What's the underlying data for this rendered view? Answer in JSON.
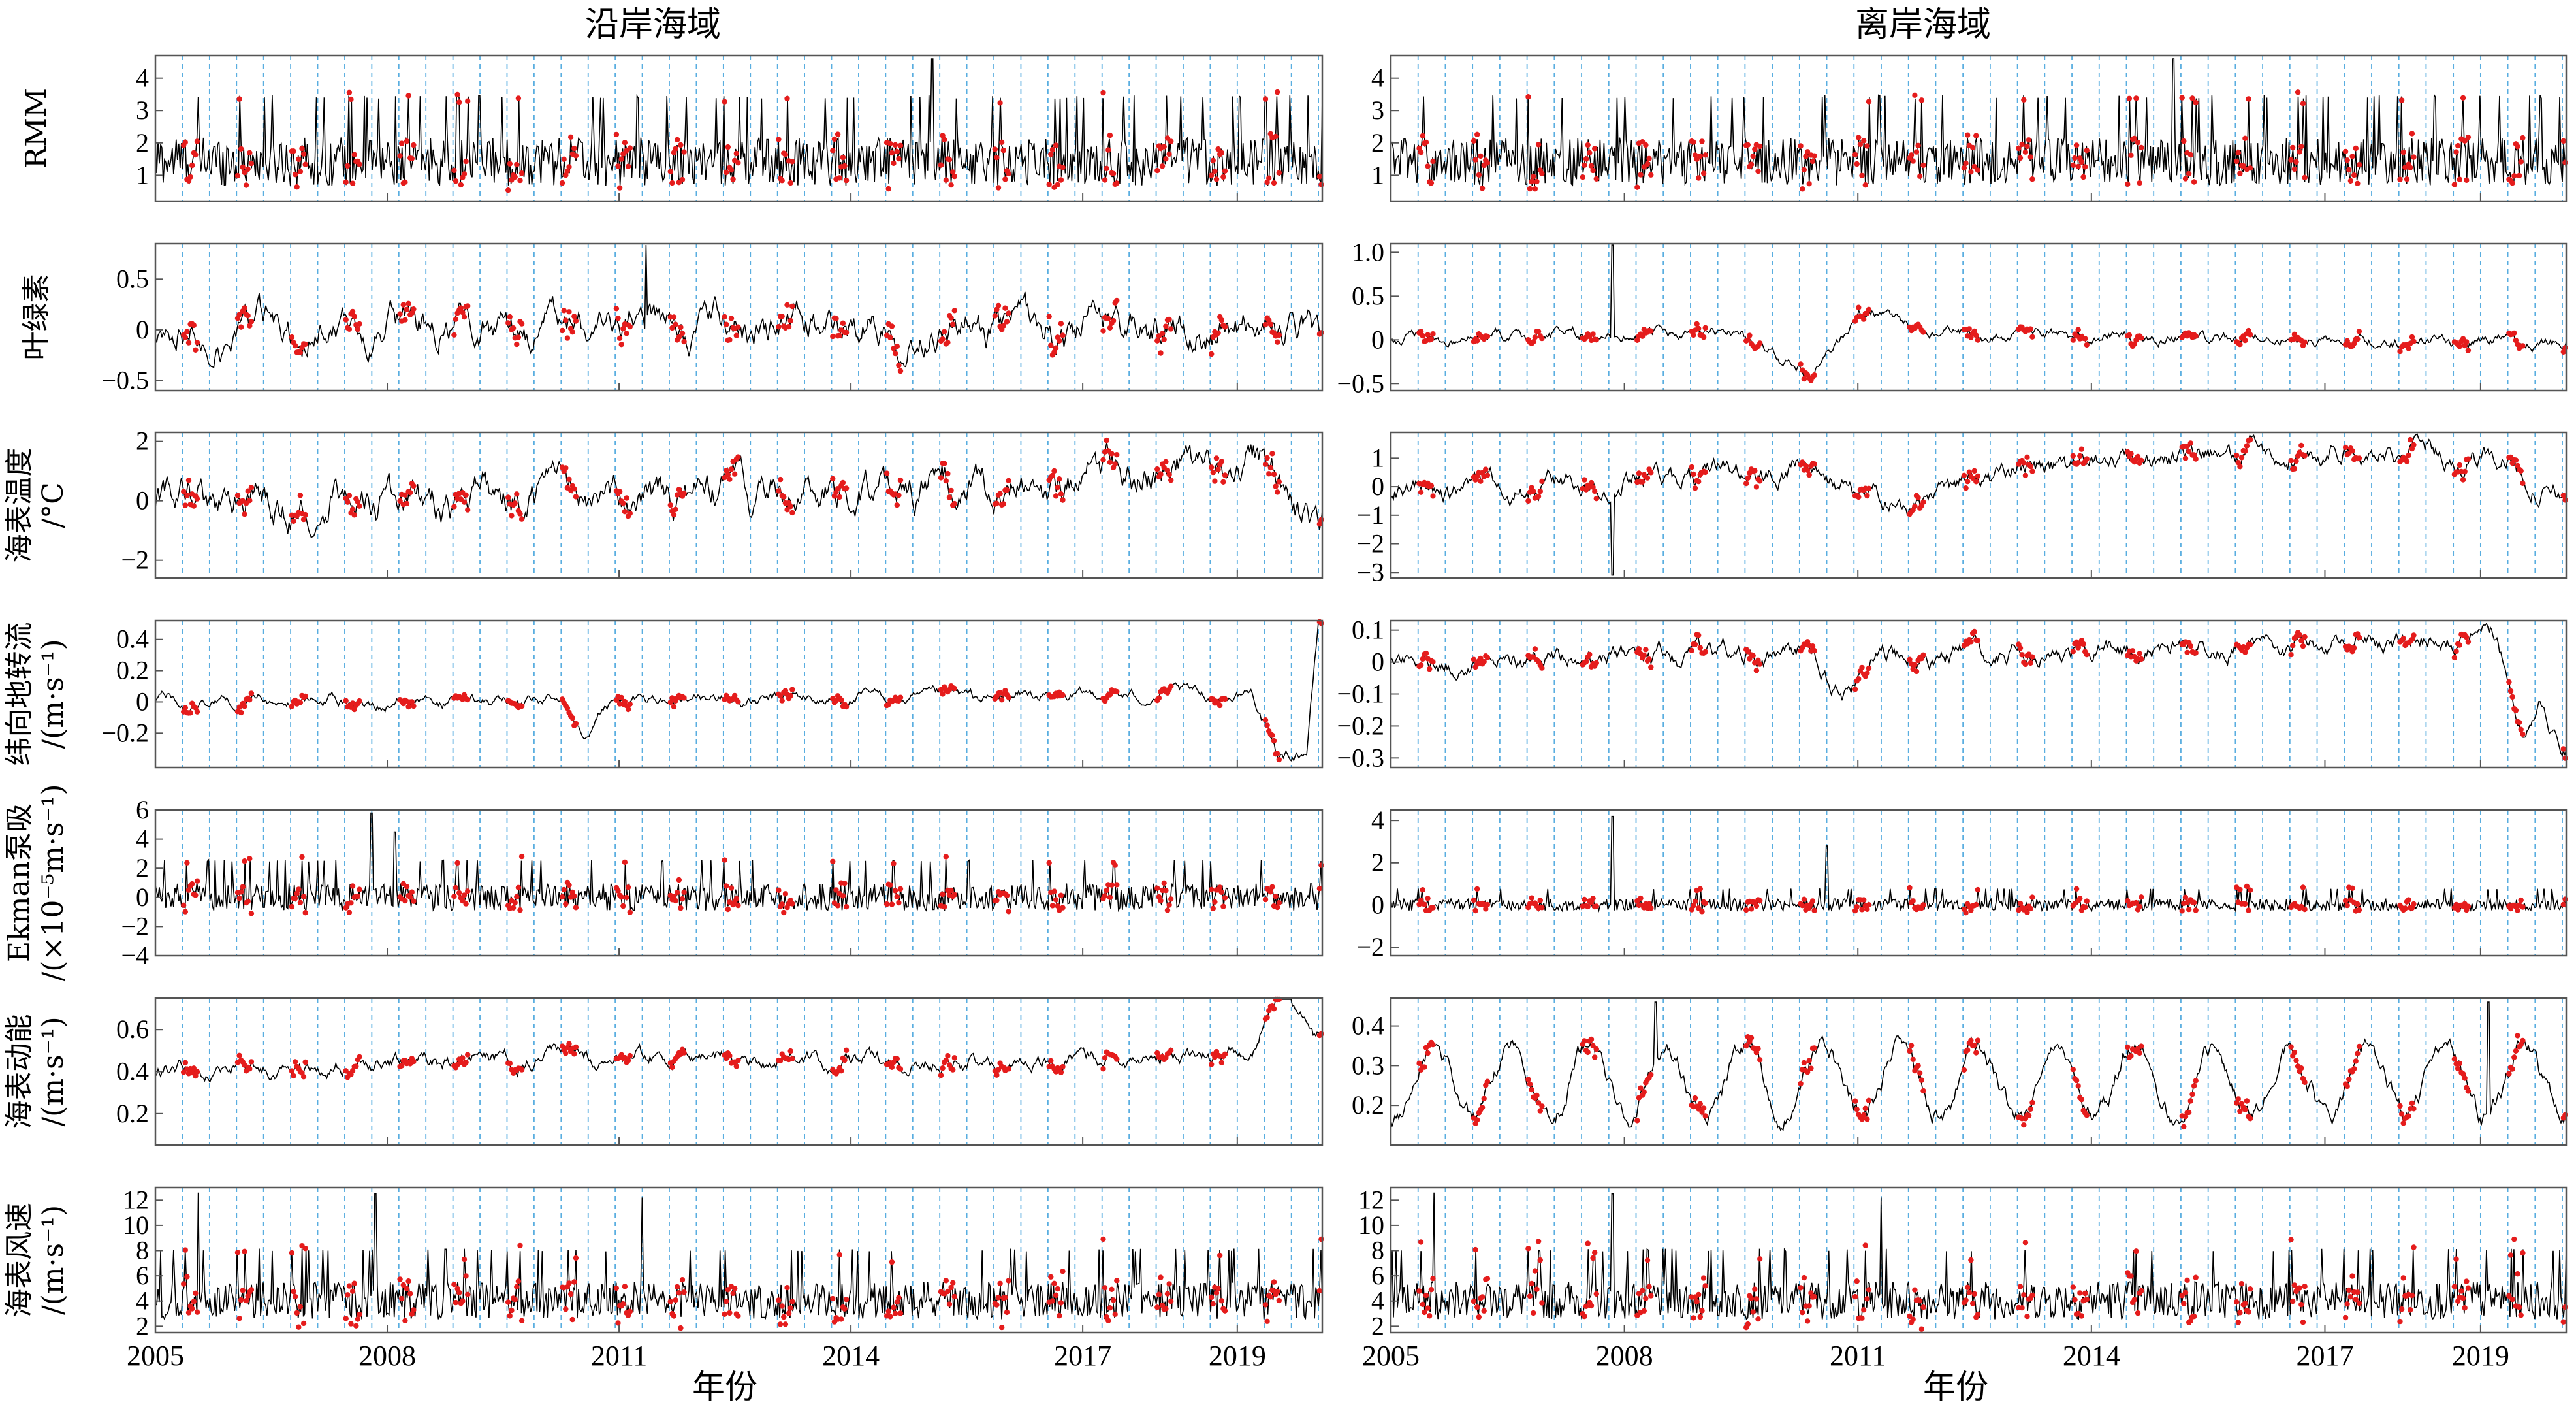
{
  "columns": [
    {
      "title": "沿岸海域"
    },
    {
      "title": "离岸海域"
    }
  ],
  "x_axis": {
    "label": "年份",
    "range": [
      2005,
      2020.1
    ],
    "ticks": [
      2005,
      2008,
      2011,
      2014,
      2017,
      2019
    ],
    "tick_labels": [
      "2005",
      "2008",
      "2011",
      "2014",
      "2017",
      "2019"
    ]
  },
  "event_lines": [
    2005.35,
    2005.7,
    2006.05,
    2006.4,
    2006.75,
    2007.1,
    2007.45,
    2007.8,
    2008.15,
    2008.5,
    2008.85,
    2009.2,
    2009.55,
    2009.9,
    2010.25,
    2010.6,
    2010.95,
    2011.3,
    2011.65,
    2012.0,
    2012.35,
    2012.7,
    2013.05,
    2013.4,
    2013.75,
    2014.1,
    2014.45,
    2014.8,
    2015.15,
    2015.5,
    2015.85,
    2016.2,
    2016.55,
    2016.9,
    2017.25,
    2017.6,
    2017.95,
    2018.3,
    2018.65,
    2019.0,
    2019.35,
    2019.7,
    2020.05
  ],
  "line_color": "#000000",
  "event_color": "#e51c1c",
  "grid_color": "#5aaee0",
  "chart_data": [
    {
      "type": "line",
      "row": 0,
      "col": 0,
      "ylabel": [
        "RMM"
      ],
      "ylim": [
        0.2,
        4.7
      ],
      "yticks": [
        1,
        2,
        3,
        4
      ],
      "tick_labels": [
        "1",
        "2",
        "3",
        "4"
      ],
      "series": [
        {
          "kind": "noise",
          "mean": 1.4,
          "amp": 0.8,
          "trend": [],
          "spikes": [
            [
              2015.05,
              4.6
            ]
          ],
          "event_amp": 0.35
        }
      ]
    },
    {
      "type": "line",
      "row": 1,
      "col": 0,
      "ylabel": [
        "叶绿素"
      ],
      "ylim": [
        -0.6,
        0.85
      ],
      "yticks": [
        -0.5,
        0,
        0.5
      ],
      "tick_labels": [
        "−0.5",
        "0",
        "0.5"
      ],
      "series": [
        {
          "kind": "smooth",
          "mean": 0.02,
          "amp": 0.22,
          "trend": [],
          "spikes": [
            [
              2011.35,
              0.85
            ]
          ],
          "event_amp": 0.2
        }
      ]
    },
    {
      "type": "line",
      "row": 2,
      "col": 0,
      "ylabel": [
        "海表温度",
        "/°C"
      ],
      "ylim": [
        -2.6,
        2.3
      ],
      "yticks": [
        -2,
        0,
        2
      ],
      "tick_labels": [
        "−2",
        "0",
        "2"
      ],
      "series": [
        {
          "kind": "smooth",
          "mean": 0,
          "amp": 0.8,
          "trend": [
            [
              2005,
              -0.1
            ],
            [
              2012,
              0.1
            ],
            [
              2016,
              0.6
            ],
            [
              2019.3,
              1.2
            ],
            [
              2020,
              -0.6
            ]
          ],
          "spikes": [],
          "event_amp": 0.5
        }
      ]
    },
    {
      "type": "line",
      "row": 3,
      "col": 0,
      "ylabel": [
        "纬向地转流",
        "/(m·s⁻¹)"
      ],
      "ylim": [
        -0.42,
        0.52
      ],
      "yticks": [
        -0.2,
        0,
        0.2,
        0.4
      ],
      "tick_labels": [
        "−0.2",
        "0",
        "0.2",
        "0.4"
      ],
      "series": [
        {
          "kind": "smooth",
          "mean": 0,
          "amp": 0.05,
          "trend": [
            [
              2005,
              0
            ],
            [
              2010.3,
              0
            ],
            [
              2010.55,
              -0.18
            ],
            [
              2010.8,
              0
            ],
            [
              2019.2,
              0.05
            ],
            [
              2019.5,
              -0.35
            ],
            [
              2019.9,
              -0.3
            ],
            [
              2020.05,
              0.5
            ]
          ],
          "spikes": [],
          "event_amp": 0.05
        }
      ]
    },
    {
      "type": "line",
      "row": 4,
      "col": 0,
      "ylabel": [
        "Ekman泵吸",
        "/(×10⁻⁵m·s⁻¹)"
      ],
      "ylim": [
        -4,
        6
      ],
      "yticks": [
        -4,
        -2,
        0,
        2,
        4,
        6
      ],
      "tick_labels": [
        "−4",
        "−2",
        "0",
        "2",
        "4",
        "6"
      ],
      "series": [
        {
          "kind": "noise",
          "mean": 0,
          "amp": 1.0,
          "trend": [],
          "spikes": [
            [
              2007.8,
              5.8
            ],
            [
              2008.1,
              4.5
            ]
          ],
          "event_amp": 0.6
        }
      ]
    },
    {
      "type": "line",
      "row": 5,
      "col": 0,
      "ylabel": [
        "海表动能",
        "/(m·s⁻¹)"
      ],
      "ylim": [
        0.05,
        0.75
      ],
      "yticks": [
        0.2,
        0.4,
        0.6
      ],
      "tick_labels": [
        "0.2",
        "0.4",
        "0.6"
      ],
      "series": [
        {
          "kind": "smooth",
          "mean": 0.22,
          "amp": 0.05,
          "trend": [
            [
              2005,
              0.18
            ],
            [
              2009,
              0.24
            ],
            [
              2011,
              0.26
            ],
            [
              2015,
              0.22
            ],
            [
              2019.2,
              0.26
            ],
            [
              2019.6,
              0.62
            ],
            [
              2020,
              0.35
            ]
          ],
          "spikes": [],
          "event_amp": 0.04
        }
      ]
    },
    {
      "type": "line",
      "row": 6,
      "col": 0,
      "ylabel": [
        "海表风速",
        "/(m·s⁻¹)"
      ],
      "ylim": [
        1.5,
        13
      ],
      "yticks": [
        2,
        4,
        6,
        8,
        10,
        12
      ],
      "tick_labels": [
        "2",
        "4",
        "6",
        "8",
        "10",
        "12"
      ],
      "series": [
        {
          "kind": "noise",
          "mean": 4.0,
          "amp": 1.6,
          "trend": [],
          "spikes": [
            [
              2007.85,
              12.5
            ],
            [
              2005.55,
              12.6
            ],
            [
              2011.3,
              12.2
            ]
          ],
          "event_amp": 1.8
        }
      ]
    },
    {
      "type": "line",
      "row": 0,
      "col": 1,
      "ylabel": [],
      "ylim": [
        0.2,
        4.7
      ],
      "yticks": [
        1,
        2,
        3,
        4
      ],
      "tick_labels": [
        "1",
        "2",
        "3",
        "4"
      ],
      "series": [
        {
          "kind": "noise",
          "mean": 1.4,
          "amp": 0.8,
          "trend": [],
          "spikes": [
            [
              2015.05,
              4.6
            ]
          ],
          "event_amp": 0.35
        }
      ]
    },
    {
      "type": "line",
      "row": 1,
      "col": 1,
      "ylabel": [],
      "ylim": [
        -0.58,
        1.1
      ],
      "yticks": [
        -0.5,
        0,
        0.5,
        1.0
      ],
      "tick_labels": [
        "−0.5",
        "0",
        "0.5",
        "1.0"
      ],
      "series": [
        {
          "kind": "smooth",
          "mean": 0.02,
          "amp": 0.09,
          "trend": [
            [
              2005,
              0
            ],
            [
              2009.5,
              0.05
            ],
            [
              2010.4,
              -0.45
            ],
            [
              2011,
              0.3
            ],
            [
              2012,
              0.05
            ],
            [
              2020,
              -0.05
            ]
          ],
          "spikes": [
            [
              2007.85,
              1.1
            ]
          ],
          "event_amp": 0.08
        }
      ]
    },
    {
      "type": "line",
      "row": 2,
      "col": 1,
      "ylabel": [],
      "ylim": [
        -3.2,
        1.9
      ],
      "yticks": [
        -3,
        -2,
        -1,
        0,
        1
      ],
      "tick_labels": [
        "−3",
        "−2",
        "−1",
        "0",
        "1"
      ],
      "series": [
        {
          "kind": "smooth",
          "mean": 0,
          "amp": 0.5,
          "trend": [
            [
              2005,
              -0.3
            ],
            [
              2010.5,
              0.6
            ],
            [
              2011.5,
              -0.8
            ],
            [
              2013,
              0.6
            ],
            [
              2016,
              1.2
            ],
            [
              2019.3,
              1.0
            ],
            [
              2020,
              -0.4
            ]
          ],
          "spikes": [
            [
              2007.85,
              -3.1
            ]
          ],
          "event_amp": 0.4
        }
      ]
    },
    {
      "type": "line",
      "row": 3,
      "col": 1,
      "ylabel": [],
      "ylim": [
        -0.33,
        0.13
      ],
      "yticks": [
        -0.3,
        -0.2,
        -0.1,
        0,
        0.1
      ],
      "tick_labels": [
        "−0.3",
        "−0.2",
        "−0.1",
        "0",
        "0.1"
      ],
      "series": [
        {
          "kind": "smooth",
          "mean": 0.01,
          "amp": 0.04,
          "trend": [
            [
              2005,
              0
            ],
            [
              2010.4,
              0.02
            ],
            [
              2010.8,
              -0.1
            ],
            [
              2011.3,
              0
            ],
            [
              2019.2,
              0.07
            ],
            [
              2019.55,
              -0.25
            ],
            [
              2019.75,
              -0.1
            ],
            [
              2020.05,
              -0.28
            ]
          ],
          "spikes": [],
          "event_amp": 0.03
        }
      ]
    },
    {
      "type": "line",
      "row": 4,
      "col": 1,
      "ylabel": [],
      "ylim": [
        -2.4,
        4.5
      ],
      "yticks": [
        -2,
        0,
        2,
        4
      ],
      "tick_labels": [
        "−2",
        "0",
        "2",
        "4"
      ],
      "series": [
        {
          "kind": "noise",
          "mean": 0,
          "amp": 0.3,
          "trend": [],
          "spikes": [
            [
              2007.85,
              4.2
            ],
            [
              2010.6,
              2.8
            ]
          ],
          "event_amp": 0.25
        }
      ]
    },
    {
      "type": "line",
      "row": 5,
      "col": 1,
      "ylabel": [],
      "ylim": [
        0.1,
        0.47
      ],
      "yticks": [
        0.2,
        0.3,
        0.4
      ],
      "tick_labels": [
        "0.2",
        "0.3",
        "0.4"
      ],
      "series": [
        {
          "kind": "seasonal",
          "mean": 0.26,
          "amp": 0.09,
          "trend": [],
          "spikes": [
            [
              2008.4,
              0.46
            ],
            [
              2019.1,
              0.46
            ]
          ],
          "event_amp": 0.03
        }
      ]
    },
    {
      "type": "line",
      "row": 6,
      "col": 1,
      "ylabel": [],
      "ylim": [
        1.5,
        13
      ],
      "yticks": [
        2,
        4,
        6,
        8,
        10,
        12
      ],
      "tick_labels": [
        "2",
        "4",
        "6",
        "8",
        "10",
        "12"
      ],
      "series": [
        {
          "kind": "noise",
          "mean": 4.0,
          "amp": 1.6,
          "trend": [],
          "spikes": [
            [
              2007.85,
              12.5
            ],
            [
              2005.55,
              12.6
            ],
            [
              2011.3,
              12.2
            ]
          ],
          "event_amp": 1.8
        }
      ]
    }
  ]
}
